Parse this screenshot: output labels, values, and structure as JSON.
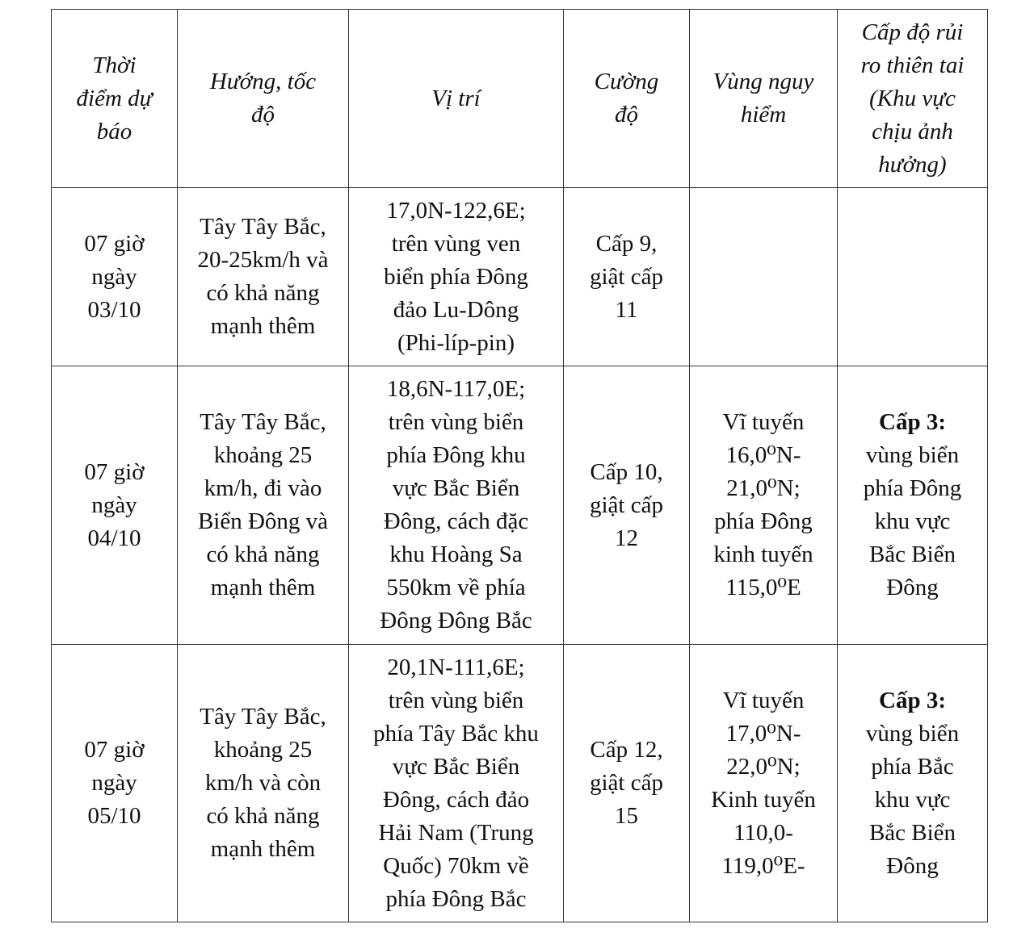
{
  "table": {
    "headers": [
      "Thời\nđiểm dự\nbáo",
      "Hướng, tốc\nđộ",
      "Vị trí",
      "Cường\nđộ",
      "Vùng nguy\nhiểm",
      "Cấp độ rủi\nro thiên tai\n(Khu vực\nchịu ảnh\nhưởng)"
    ],
    "rows": [
      {
        "time": "07 giờ\nngày\n03/10",
        "direction": "Tây Tây Bắc,\n20-25km/h và\ncó khả năng\nmạnh thêm",
        "position": "17,0N-122,6E;\ntrên vùng ven\nbiển phía Đông\nđảo Lu-Dông\n(Phi-líp-pin)",
        "intensity": "Cấp 9,\ngiật cấp\n11",
        "danger_zone": "",
        "risk_label": "",
        "risk_text": ""
      },
      {
        "time": "07 giờ\nngày\n04/10",
        "direction": "Tây Tây Bắc,\nkhoảng 25\nkm/h, đi vào\nBiển Đông và\ncó khả năng\nmạnh thêm",
        "position": "18,6N-117,0E;\ntrên vùng biển\nphía Đông khu\nvực Bắc Biển\nĐông, cách đặc\nkhu Hoàng Sa\n550km về phía\nĐông Đông Bắc",
        "intensity": "Cấp 10,\ngiật cấp\n12",
        "danger_zone": "Vĩ tuyến\n16,0⁰N-\n21,0⁰N;\nphía Đông\nkinh tuyến\n115,0⁰E",
        "risk_label": "Cấp 3:",
        "risk_text": "vùng biển\nphía Đông\nkhu vực\nBắc Biển\nĐông"
      },
      {
        "time": "07 giờ\nngày\n05/10",
        "direction": "Tây Tây Bắc,\nkhoảng 25\nkm/h và còn\ncó khả năng\nmạnh thêm",
        "position": "20,1N-111,6E;\ntrên vùng biển\nphía Tây Bắc khu\nvực Bắc Biển\nĐông, cách đảo\nHải Nam (Trung\nQuốc) 70km về\nphía Đông Bắc",
        "intensity": "Cấp 12,\ngiật cấp\n15",
        "danger_zone": "Vĩ tuyến\n17,0⁰N-\n22,0⁰N;\nKinh tuyến\n110,0-\n119,0⁰E-",
        "risk_label": "Cấp 3:",
        "risk_text": "vùng biển\nphía Bắc\nkhu vực\nBắc Biển\nĐông"
      }
    ]
  }
}
